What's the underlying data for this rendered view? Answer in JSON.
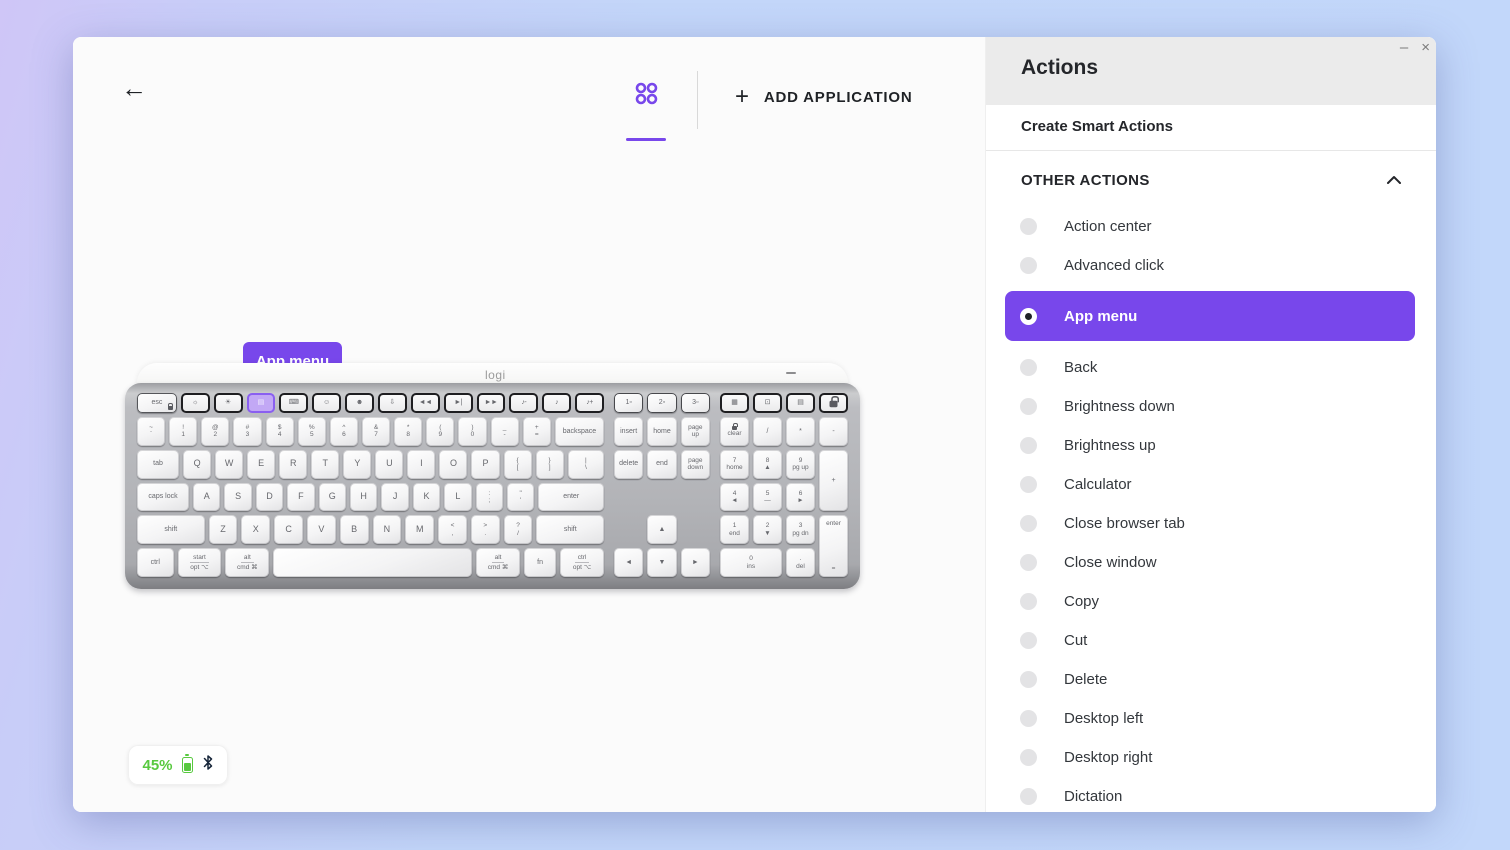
{
  "colors": {
    "accent": "#7847eb",
    "battery_green": "#58c93f",
    "highlight_key_fill": "#c2a8f5",
    "tooltip_bg": "#7847eb"
  },
  "header": {
    "back_icon": "←",
    "apps_tab_icon": "grid-of-circles",
    "plus_icon": "+",
    "add_application": "ADD APPLICATION"
  },
  "tooltip": {
    "label": "App menu"
  },
  "battery": {
    "percent": "45%",
    "battery_icon": "battery-vertical-green",
    "bluetooth_icon": "bluetooth"
  },
  "keyboard": {
    "brand": "logi",
    "fn_main": [
      {
        "n": "esc",
        "l": "esc",
        "f": 1.6,
        "cls": "esc",
        "lock": true,
        "i": true
      },
      {
        "n": "brightness-down",
        "g": "☼",
        "cls": "fnk",
        "i": true
      },
      {
        "n": "brightness-up",
        "g": "☀",
        "cls": "fnk",
        "i": true
      },
      {
        "n": "app-menu",
        "g": "▤",
        "cls": "fnk hl",
        "i": true
      },
      {
        "n": "backlight",
        "g": "⌨",
        "cls": "fnk",
        "i": true
      },
      {
        "n": "dictation",
        "g": "☺",
        "cls": "fnk",
        "i": true
      },
      {
        "n": "emoji",
        "g": "☻",
        "cls": "fnk",
        "i": true
      },
      {
        "n": "mic-mute",
        "g": "⇩",
        "cls": "fnk",
        "i": true
      },
      {
        "n": "prev-track",
        "g": "◄◄",
        "cls": "fnk sm",
        "i": true
      },
      {
        "n": "play-pause",
        "g": "►|",
        "cls": "fnk sm",
        "i": true
      },
      {
        "n": "next-track",
        "g": "►►",
        "cls": "fnk sm",
        "i": true
      },
      {
        "n": "volume-down",
        "g": "♪-",
        "cls": "fnk sm",
        "i": true
      },
      {
        "n": "volume-mute",
        "g": "♪",
        "cls": "fnk sm",
        "i": true
      },
      {
        "n": "volume-up",
        "g": "♪+",
        "cls": "fnk sm",
        "i": true
      }
    ],
    "fn_nav": [
      {
        "n": "easy-switch-1",
        "l": "1▫",
        "cls": "esw",
        "i": true
      },
      {
        "n": "easy-switch-2",
        "l": "2▫",
        "cls": "esw",
        "i": true
      },
      {
        "n": "easy-switch-3",
        "l": "3▫",
        "cls": "esw",
        "i": true
      }
    ],
    "fn_np": [
      {
        "n": "calculator-key",
        "g": "▦",
        "cls": "fnk",
        "i": true
      },
      {
        "n": "screen-capture-key",
        "g": "⊡",
        "cls": "fnk",
        "i": true
      },
      {
        "n": "context-menu-key",
        "g": "▤",
        "cls": "fnk",
        "i": true
      },
      {
        "n": "lock-key",
        "g": "",
        "cls": "fnk",
        "lockbig": true,
        "i": true
      }
    ],
    "main_rows": [
      [
        {
          "t": "~",
          "b": "`"
        },
        {
          "t": "!",
          "b": "1"
        },
        {
          "t": "@",
          "b": "2"
        },
        {
          "t": "#",
          "b": "3"
        },
        {
          "t": "$",
          "b": "4"
        },
        {
          "t": "%",
          "b": "5"
        },
        {
          "t": "^",
          "b": "6"
        },
        {
          "t": "&",
          "b": "7"
        },
        {
          "t": "*",
          "b": "8"
        },
        {
          "t": "(",
          "b": "9"
        },
        {
          "t": ")",
          "b": "0"
        },
        {
          "t": "_",
          "b": "-"
        },
        {
          "t": "+",
          "b": "="
        },
        {
          "n": "backspace",
          "l": "backspace",
          "f": 1.75
        }
      ],
      [
        {
          "n": "tab",
          "l": "tab",
          "f": 1.5
        },
        {
          "l": "Q",
          "cls": "letter"
        },
        {
          "l": "W",
          "cls": "letter"
        },
        {
          "l": "E",
          "cls": "letter"
        },
        {
          "l": "R",
          "cls": "letter"
        },
        {
          "l": "T",
          "cls": "letter"
        },
        {
          "l": "Y",
          "cls": "letter"
        },
        {
          "l": "U",
          "cls": "letter"
        },
        {
          "l": "I",
          "cls": "letter"
        },
        {
          "l": "O",
          "cls": "letter"
        },
        {
          "l": "P",
          "cls": "letter"
        },
        {
          "t": "{",
          "b": "["
        },
        {
          "t": "}",
          "b": "]"
        },
        {
          "n": "backslash",
          "t": "|",
          "b": "\\",
          "f": 1.3
        }
      ],
      [
        {
          "n": "caps-lock",
          "l": "caps lock",
          "f": 1.9
        },
        {
          "l": "A",
          "cls": "letter"
        },
        {
          "l": "S",
          "cls": "letter"
        },
        {
          "l": "D",
          "cls": "letter"
        },
        {
          "l": "F",
          "cls": "letter"
        },
        {
          "l": "G",
          "cls": "letter"
        },
        {
          "l": "H",
          "cls": "letter"
        },
        {
          "l": "J",
          "cls": "letter"
        },
        {
          "l": "K",
          "cls": "letter"
        },
        {
          "l": "L",
          "cls": "letter"
        },
        {
          "t": ":",
          "b": ";"
        },
        {
          "t": "\"",
          "b": "'"
        },
        {
          "n": "enter",
          "l": "enter",
          "f": 2.4
        }
      ],
      [
        {
          "n": "shift-left",
          "l": "shift",
          "f": 2.35
        },
        {
          "l": "Z",
          "cls": "letter"
        },
        {
          "l": "X",
          "cls": "letter"
        },
        {
          "l": "C",
          "cls": "letter"
        },
        {
          "l": "V",
          "cls": "letter"
        },
        {
          "l": "B",
          "cls": "letter"
        },
        {
          "l": "N",
          "cls": "letter"
        },
        {
          "l": "M",
          "cls": "letter"
        },
        {
          "t": "<",
          "b": ","
        },
        {
          "t": ">",
          "b": "."
        },
        {
          "t": "?",
          "b": "/"
        },
        {
          "n": "shift-right",
          "l": "shift",
          "f": 2.35
        }
      ],
      [
        {
          "n": "ctrl-left",
          "l": "ctrl",
          "f": 1.25
        },
        {
          "n": "start-opt",
          "t": "start",
          "b": "opt ⌥",
          "f": 1.5,
          "cls": "mod"
        },
        {
          "n": "alt-cmd-left",
          "t": "alt",
          "b": "cmd ⌘",
          "f": 1.5,
          "cls": "mod"
        },
        {
          "n": "space",
          "l": " ",
          "f": 6.8
        },
        {
          "n": "alt-cmd-right",
          "t": "alt",
          "b": "cmd ⌘",
          "f": 1.5,
          "cls": "mod"
        },
        {
          "n": "fn",
          "l": "fn",
          "f": 1.1
        },
        {
          "n": "ctrl-opt",
          "t": "ctrl",
          "b": "opt ⌥",
          "f": 1.5,
          "cls": "mod"
        }
      ]
    ],
    "nav_rows": [
      [
        {
          "n": "insert",
          "l": "insert"
        },
        {
          "n": "home",
          "l": "home"
        },
        {
          "n": "page-up",
          "t": "page",
          "b": "up"
        }
      ],
      [
        {
          "n": "delete",
          "l": "delete"
        },
        {
          "n": "end",
          "l": "end"
        },
        {
          "n": "page-down",
          "t": "page",
          "b": "down"
        }
      ],
      [
        {
          "sp": true
        },
        {
          "sp": true
        },
        {
          "sp": true
        }
      ],
      [
        {
          "sp": true
        },
        {
          "n": "arrow-up",
          "l": "▲"
        },
        {
          "sp": true
        }
      ],
      [
        {
          "n": "arrow-left",
          "l": "◄"
        },
        {
          "n": "arrow-down",
          "l": "▼"
        },
        {
          "n": "arrow-right",
          "l": "►"
        }
      ]
    ],
    "numpad": [
      {
        "n": "num-clear",
        "b": "clear",
        "lock": true,
        "gc": "1",
        "gr": "1"
      },
      {
        "n": "num-divide",
        "l": "/",
        "gc": "2",
        "gr": "1"
      },
      {
        "n": "num-multiply",
        "l": "*",
        "gc": "3",
        "gr": "1"
      },
      {
        "n": "num-minus",
        "l": "-",
        "gc": "4",
        "gr": "1"
      },
      {
        "n": "num-7",
        "t": "7",
        "b": "home",
        "gc": "1",
        "gr": "2"
      },
      {
        "n": "num-8",
        "t": "8",
        "b": "▲",
        "gc": "2",
        "gr": "2"
      },
      {
        "n": "num-9",
        "t": "9",
        "b": "pg up",
        "gc": "3",
        "gr": "2"
      },
      {
        "n": "num-plus",
        "l": "+",
        "gc": "4",
        "gr": "2 / 4"
      },
      {
        "n": "num-4",
        "t": "4",
        "b": "◄",
        "gc": "1",
        "gr": "3"
      },
      {
        "n": "num-5",
        "t": "5",
        "b": "—",
        "gc": "2",
        "gr": "3"
      },
      {
        "n": "num-6",
        "t": "6",
        "b": "►",
        "gc": "3",
        "gr": "3"
      },
      {
        "n": "num-1",
        "t": "1",
        "b": "end",
        "gc": "1",
        "gr": "4"
      },
      {
        "n": "num-2",
        "t": "2",
        "b": "▼",
        "gc": "2",
        "gr": "4"
      },
      {
        "n": "num-3",
        "t": "3",
        "b": "pg dn",
        "gc": "3",
        "gr": "4"
      },
      {
        "n": "num-enter",
        "t": "enter",
        "b": "=",
        "gc": "4",
        "gr": "4 / 6",
        "cls": "tall2"
      },
      {
        "n": "num-0",
        "t": "0",
        "b": "ins",
        "gc": "1 / 3",
        "gr": "5"
      },
      {
        "n": "num-dot",
        "t": ".",
        "b": "del",
        "gc": "3",
        "gr": "5"
      }
    ]
  },
  "actions_panel": {
    "title": "Actions",
    "minimize_glyph": "–",
    "close_glyph": "×",
    "create_smart_actions": "Create Smart Actions",
    "section_label": "OTHER ACTIONS",
    "collapse_icon": "chevron-up",
    "items": [
      {
        "label": "Action center",
        "selected": false
      },
      {
        "label": "Advanced click",
        "selected": false
      },
      {
        "label": "App menu",
        "selected": true
      },
      {
        "label": "Back",
        "selected": false
      },
      {
        "label": "Brightness down",
        "selected": false
      },
      {
        "label": "Brightness up",
        "selected": false
      },
      {
        "label": "Calculator",
        "selected": false
      },
      {
        "label": "Close browser tab",
        "selected": false
      },
      {
        "label": "Close window",
        "selected": false
      },
      {
        "label": "Copy",
        "selected": false
      },
      {
        "label": "Cut",
        "selected": false
      },
      {
        "label": "Delete",
        "selected": false
      },
      {
        "label": "Desktop left",
        "selected": false
      },
      {
        "label": "Desktop right",
        "selected": false
      },
      {
        "label": "Dictation",
        "selected": false
      }
    ]
  }
}
